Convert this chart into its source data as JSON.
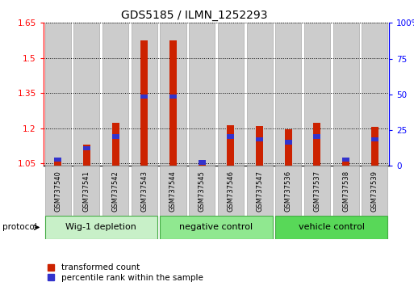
{
  "title": "GDS5185 / ILMN_1252293",
  "samples": [
    "GSM737540",
    "GSM737541",
    "GSM737542",
    "GSM737543",
    "GSM737544",
    "GSM737545",
    "GSM737546",
    "GSM737547",
    "GSM737536",
    "GSM737537",
    "GSM737538",
    "GSM737539"
  ],
  "red_values": [
    1.065,
    1.13,
    1.225,
    1.575,
    1.575,
    1.062,
    1.215,
    1.21,
    1.195,
    1.225,
    1.065,
    1.205
  ],
  "blue_percentile": [
    6,
    14,
    22,
    50,
    50,
    4,
    22,
    20,
    18,
    22,
    6,
    20
  ],
  "groups": [
    {
      "label": "Wig-1 depletion",
      "start": 0,
      "end": 3,
      "color": "#c8f0c8"
    },
    {
      "label": "negative control",
      "start": 4,
      "end": 7,
      "color": "#90e890"
    },
    {
      "label": "vehicle control",
      "start": 8,
      "end": 11,
      "color": "#58d858"
    }
  ],
  "group_edge_color": "#44aa44",
  "ylim_left": [
    1.04,
    1.65
  ],
  "ylim_right": [
    0,
    100
  ],
  "yticks_left": [
    1.05,
    1.2,
    1.35,
    1.5,
    1.65
  ],
  "yticks_right": [
    0,
    25,
    50,
    75,
    100
  ],
  "red_color": "#cc2200",
  "blue_color": "#3333cc",
  "bar_bg_color": "#cccccc",
  "bar_bg_edge": "#aaaaaa",
  "base_value": 1.04,
  "protocol_label": "protocol",
  "legend_red": "transformed count",
  "legend_blue": "percentile rank within the sample"
}
